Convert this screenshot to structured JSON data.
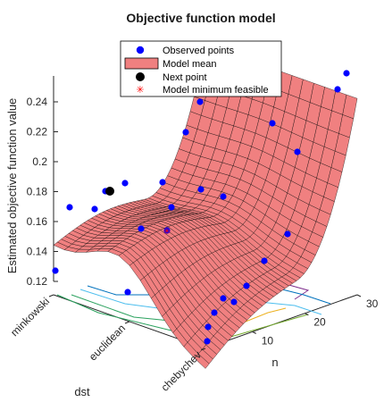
{
  "chart_data": {
    "type": "scatter",
    "title": "Objective function model",
    "ylabel": "Estimated objective function value",
    "xlabel": "n",
    "zlabel": "dst",
    "z_ticks": [
      0.12,
      0.14,
      0.16,
      0.18,
      0.2,
      0.22,
      0.24
    ],
    "n_ticks": [
      10,
      20,
      30
    ],
    "dst_categories": [
      "minkowski",
      "euclidean",
      "chebychev"
    ],
    "legend": [
      {
        "label": "Observed points",
        "marker": "dot-blue"
      },
      {
        "label": "Model mean",
        "marker": "patch-salmon"
      },
      {
        "label": "Next point",
        "marker": "dot-black"
      },
      {
        "label": "Model minimum feasible",
        "marker": "star-red"
      }
    ],
    "colors": {
      "observed": "#0000ff",
      "surface_fill": "#f08080",
      "surface_edge": "#000000",
      "next_point": "#000000",
      "minimum": "#ff0000",
      "axis": "#262626"
    }
  }
}
